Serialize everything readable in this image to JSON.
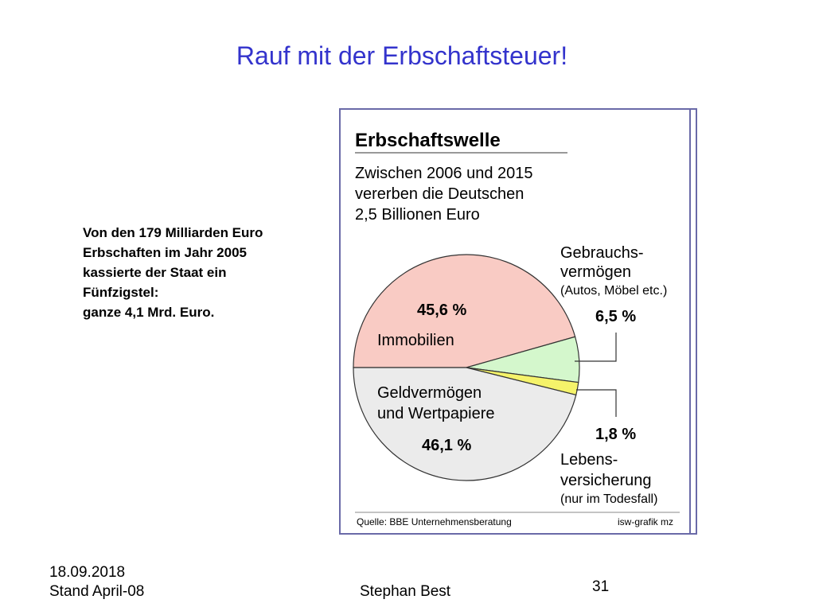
{
  "slide": {
    "title": "Rauf mit der Erbschaftsteuer!",
    "note_lines": [
      "Von den 179 Milliarden Euro",
      "Erbschaften im Jahr 2005",
      "kassierte der Staat ein",
      "Fünfzigstel:",
      "ganze 4,1 Mrd. Euro."
    ]
  },
  "footer": {
    "date": "18.09.2018",
    "stand": "Stand April-08",
    "author": "Stephan Best",
    "page": "31"
  },
  "chart_data": {
    "type": "pie",
    "title": "Erbschaftswelle",
    "subtitle_lines": [
      "Zwischen 2006 und 2015",
      "vererben die Deutschen",
      "2,5 Billionen Euro"
    ],
    "slices": [
      {
        "label_lines": [
          "Immobilien"
        ],
        "value": 45.6,
        "value_label": "45,6 %",
        "color": "#f9cbc4"
      },
      {
        "label_lines": [
          "Gebrauchs-",
          "vermögen"
        ],
        "sublabel": "(Autos, Möbel etc.)",
        "value": 6.5,
        "value_label": "6,5 %",
        "color": "#d4f7cc"
      },
      {
        "label_lines": [
          "Lebens-",
          "versicherung"
        ],
        "sublabel": "(nur im Todesfall)",
        "value": 1.8,
        "value_label": "1,8 %",
        "color": "#f5f36a"
      },
      {
        "label_lines": [
          "Geldvermögen",
          "und Wertpapiere"
        ],
        "value": 46.1,
        "value_label": "46,1 %",
        "color": "#ebebeb"
      }
    ],
    "source": "Quelle: BBE Unternehmensberatung",
    "credit": "isw-grafik mz"
  }
}
